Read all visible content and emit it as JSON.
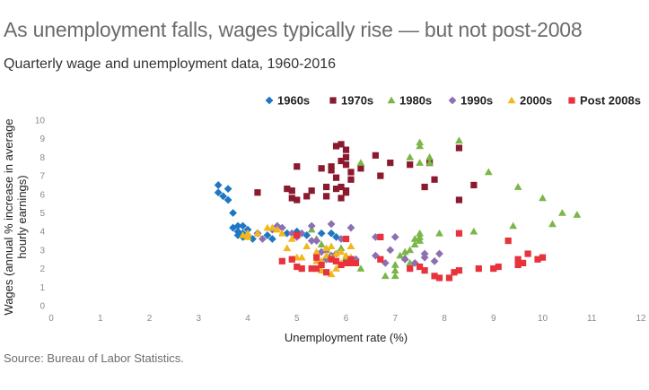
{
  "title": "As unemployment falls, wages typically rise — but not post-2008",
  "subtitle": "Quarterly wage and unemployment data, 1960-2016",
  "source": "Source: Bureau of Labor Statistics.",
  "chart_data": {
    "type": "scatter",
    "title": "As unemployment falls, wages typically rise — but not post-2008",
    "subtitle": "Quarterly wage and unemployment data, 1960-2016",
    "xlabel": "Unemployment rate (%)",
    "ylabel_lines": [
      "Wages (annual % increase in average",
      "hourly earnings)"
    ],
    "xlim": [
      0,
      12
    ],
    "ylim": [
      0,
      10
    ],
    "xticks": [
      "0",
      "1",
      "2",
      "3",
      "4",
      "5",
      "6",
      "7",
      "8",
      "9",
      "10",
      "11",
      "12"
    ],
    "yticks": [
      "0",
      "1",
      "2",
      "3",
      "4",
      "5",
      "6",
      "7",
      "8",
      "9",
      "10"
    ],
    "grid": false,
    "legend_position": "top-right",
    "series": [
      {
        "name": "1960s",
        "marker": "diamond",
        "color": "#1f77c4",
        "points": [
          [
            3.4,
            6.5
          ],
          [
            3.4,
            6.1
          ],
          [
            3.5,
            5.9
          ],
          [
            3.6,
            6.3
          ],
          [
            3.6,
            5.7
          ],
          [
            3.7,
            5.0
          ],
          [
            3.7,
            4.2
          ],
          [
            3.8,
            4.3
          ],
          [
            3.8,
            4.0
          ],
          [
            3.8,
            3.8
          ],
          [
            3.9,
            4.3
          ],
          [
            3.9,
            3.9
          ],
          [
            4.0,
            4.1
          ],
          [
            4.1,
            3.6
          ],
          [
            4.4,
            3.8
          ],
          [
            4.5,
            3.6
          ],
          [
            4.8,
            3.9
          ],
          [
            5.0,
            4.0
          ],
          [
            5.2,
            3.8
          ],
          [
            5.5,
            3.9
          ],
          [
            5.7,
            3.9
          ],
          [
            5.8,
            3.7
          ],
          [
            4.2,
            3.9
          ],
          [
            3.9,
            3.7
          ]
        ]
      },
      {
        "name": "1970s",
        "marker": "square",
        "color": "#8b1a2e",
        "points": [
          [
            4.2,
            6.1
          ],
          [
            4.8,
            6.3
          ],
          [
            4.9,
            6.2
          ],
          [
            4.9,
            5.8
          ],
          [
            5.0,
            7.5
          ],
          [
            5.0,
            5.7
          ],
          [
            5.2,
            5.9
          ],
          [
            5.3,
            6.2
          ],
          [
            5.5,
            7.4
          ],
          [
            5.6,
            5.9
          ],
          [
            5.6,
            6.4
          ],
          [
            5.7,
            7.3
          ],
          [
            5.7,
            7.5
          ],
          [
            5.8,
            8.6
          ],
          [
            5.8,
            6.9
          ],
          [
            5.8,
            6.3
          ],
          [
            5.9,
            8.7
          ],
          [
            5.9,
            7.8
          ],
          [
            5.9,
            6.4
          ],
          [
            5.9,
            5.8
          ],
          [
            6.0,
            8.4
          ],
          [
            6.0,
            8.0
          ],
          [
            6.0,
            7.6
          ],
          [
            6.0,
            6.2
          ],
          [
            6.0,
            6.1
          ],
          [
            6.1,
            7.2
          ],
          [
            6.1,
            6.8
          ],
          [
            6.3,
            7.4
          ],
          [
            6.6,
            8.1
          ],
          [
            6.7,
            7.0
          ],
          [
            6.9,
            7.7
          ],
          [
            7.3,
            7.6
          ],
          [
            7.6,
            6.4
          ],
          [
            7.7,
            7.7
          ],
          [
            7.8,
            6.8
          ],
          [
            8.3,
            8.5
          ],
          [
            8.3,
            5.7
          ],
          [
            8.6,
            6.5
          ]
        ]
      },
      {
        "name": "1980s",
        "marker": "triangle",
        "color": "#7ab648",
        "points": [
          [
            5.3,
            4.1
          ],
          [
            5.4,
            3.6
          ],
          [
            5.5,
            3.3
          ],
          [
            5.6,
            3.0
          ],
          [
            5.7,
            2.7
          ],
          [
            5.9,
            3.1
          ],
          [
            6.0,
            2.6
          ],
          [
            6.0,
            2.3
          ],
          [
            6.3,
            2.0
          ],
          [
            6.8,
            1.6
          ],
          [
            7.0,
            1.6
          ],
          [
            7.0,
            2.2
          ],
          [
            7.1,
            2.7
          ],
          [
            7.2,
            2.9
          ],
          [
            7.2,
            2.6
          ],
          [
            7.3,
            2.3
          ],
          [
            7.3,
            3.0
          ],
          [
            7.4,
            3.3
          ],
          [
            7.4,
            3.6
          ],
          [
            7.5,
            3.7
          ],
          [
            7.5,
            3.5
          ],
          [
            7.5,
            3.9
          ],
          [
            6.3,
            7.7
          ],
          [
            7.3,
            8.0
          ],
          [
            7.5,
            7.7
          ],
          [
            7.5,
            8.6
          ],
          [
            7.5,
            8.8
          ],
          [
            7.7,
            8.0
          ],
          [
            7.7,
            7.7
          ],
          [
            7.9,
            3.9
          ],
          [
            8.3,
            8.9
          ],
          [
            8.6,
            4.0
          ],
          [
            8.9,
            7.2
          ],
          [
            9.4,
            4.3
          ],
          [
            9.5,
            6.4
          ],
          [
            10.0,
            5.8
          ],
          [
            10.2,
            4.4
          ],
          [
            10.4,
            5.0
          ],
          [
            10.7,
            4.9
          ],
          [
            7.0,
            1.9
          ]
        ]
      },
      {
        "name": "1990s",
        "marker": "diamond",
        "color": "#8d6fb3",
        "points": [
          [
            4.0,
            3.8
          ],
          [
            4.2,
            3.9
          ],
          [
            4.3,
            3.6
          ],
          [
            4.5,
            4.1
          ],
          [
            4.6,
            4.3
          ],
          [
            4.7,
            4.2
          ],
          [
            4.9,
            3.9
          ],
          [
            5.0,
            3.7
          ],
          [
            5.1,
            3.9
          ],
          [
            5.3,
            4.3
          ],
          [
            5.3,
            3.5
          ],
          [
            5.4,
            3.5
          ],
          [
            5.5,
            2.9
          ],
          [
            5.6,
            3.0
          ],
          [
            5.6,
            2.5
          ],
          [
            5.7,
            4.4
          ],
          [
            5.7,
            2.7
          ],
          [
            5.8,
            2.8
          ],
          [
            5.9,
            3.6
          ],
          [
            6.1,
            4.2
          ],
          [
            6.2,
            2.5
          ],
          [
            6.6,
            3.7
          ],
          [
            6.6,
            2.7
          ],
          [
            6.8,
            2.3
          ],
          [
            6.9,
            3.0
          ],
          [
            7.0,
            3.7
          ],
          [
            7.2,
            2.5
          ],
          [
            7.4,
            2.3
          ],
          [
            7.6,
            2.6
          ],
          [
            7.6,
            2.8
          ],
          [
            7.8,
            2.4
          ],
          [
            7.9,
            2.8
          ]
        ]
      },
      {
        "name": "2000s",
        "marker": "triangle",
        "color": "#f2b81b",
        "points": [
          [
            3.9,
            3.8
          ],
          [
            4.0,
            3.7
          ],
          [
            4.0,
            3.9
          ],
          [
            4.2,
            3.9
          ],
          [
            4.4,
            4.2
          ],
          [
            4.5,
            4.2
          ],
          [
            4.6,
            4.1
          ],
          [
            4.7,
            3.9
          ],
          [
            4.8,
            3.1
          ],
          [
            4.9,
            3.6
          ],
          [
            5.0,
            2.6
          ],
          [
            5.1,
            2.6
          ],
          [
            5.2,
            3.2
          ],
          [
            5.4,
            2.9
          ],
          [
            5.4,
            2.4
          ],
          [
            5.5,
            2.4
          ],
          [
            5.6,
            3.1
          ],
          [
            5.6,
            2.7
          ],
          [
            5.7,
            3.2
          ],
          [
            5.7,
            2.6
          ],
          [
            5.7,
            1.7
          ],
          [
            5.8,
            2.8
          ],
          [
            5.8,
            2.4
          ],
          [
            5.9,
            2.9
          ],
          [
            5.9,
            2.3
          ],
          [
            6.0,
            2.7
          ],
          [
            6.1,
            3.2
          ],
          [
            6.1,
            2.6
          ],
          [
            6.1,
            2.5
          ],
          [
            6.2,
            2.3
          ],
          [
            5.8,
            2.0
          ],
          [
            5.5,
            1.9
          ]
        ]
      },
      {
        "name": "Post 2008s",
        "marker": "square",
        "color": "#e8323c",
        "points": [
          [
            4.7,
            2.4
          ],
          [
            4.9,
            2.5
          ],
          [
            5.0,
            2.1
          ],
          [
            5.0,
            3.8
          ],
          [
            5.1,
            2.0
          ],
          [
            5.4,
            2.0
          ],
          [
            5.5,
            2.2
          ],
          [
            5.6,
            1.8
          ],
          [
            5.7,
            2.5
          ],
          [
            5.8,
            2.4
          ],
          [
            5.9,
            2.2
          ],
          [
            6.0,
            2.3
          ],
          [
            6.1,
            2.5
          ],
          [
            6.1,
            2.3
          ],
          [
            6.2,
            2.3
          ],
          [
            6.7,
            3.7
          ],
          [
            6.7,
            2.5
          ],
          [
            7.3,
            2.0
          ],
          [
            7.5,
            2.1
          ],
          [
            7.6,
            1.9
          ],
          [
            7.8,
            1.6
          ],
          [
            7.9,
            1.5
          ],
          [
            8.1,
            1.5
          ],
          [
            8.2,
            1.8
          ],
          [
            8.3,
            1.9
          ],
          [
            8.3,
            3.9
          ],
          [
            8.7,
            2.0
          ],
          [
            9.0,
            2.0
          ],
          [
            9.1,
            2.1
          ],
          [
            9.3,
            3.5
          ],
          [
            9.5,
            2.5
          ],
          [
            9.5,
            2.2
          ],
          [
            9.6,
            2.3
          ],
          [
            9.7,
            2.8
          ],
          [
            9.9,
            2.5
          ],
          [
            10.0,
            2.6
          ],
          [
            6.0,
            3.6
          ],
          [
            5.4,
            2.6
          ],
          [
            5.3,
            2.0
          ]
        ]
      }
    ]
  }
}
